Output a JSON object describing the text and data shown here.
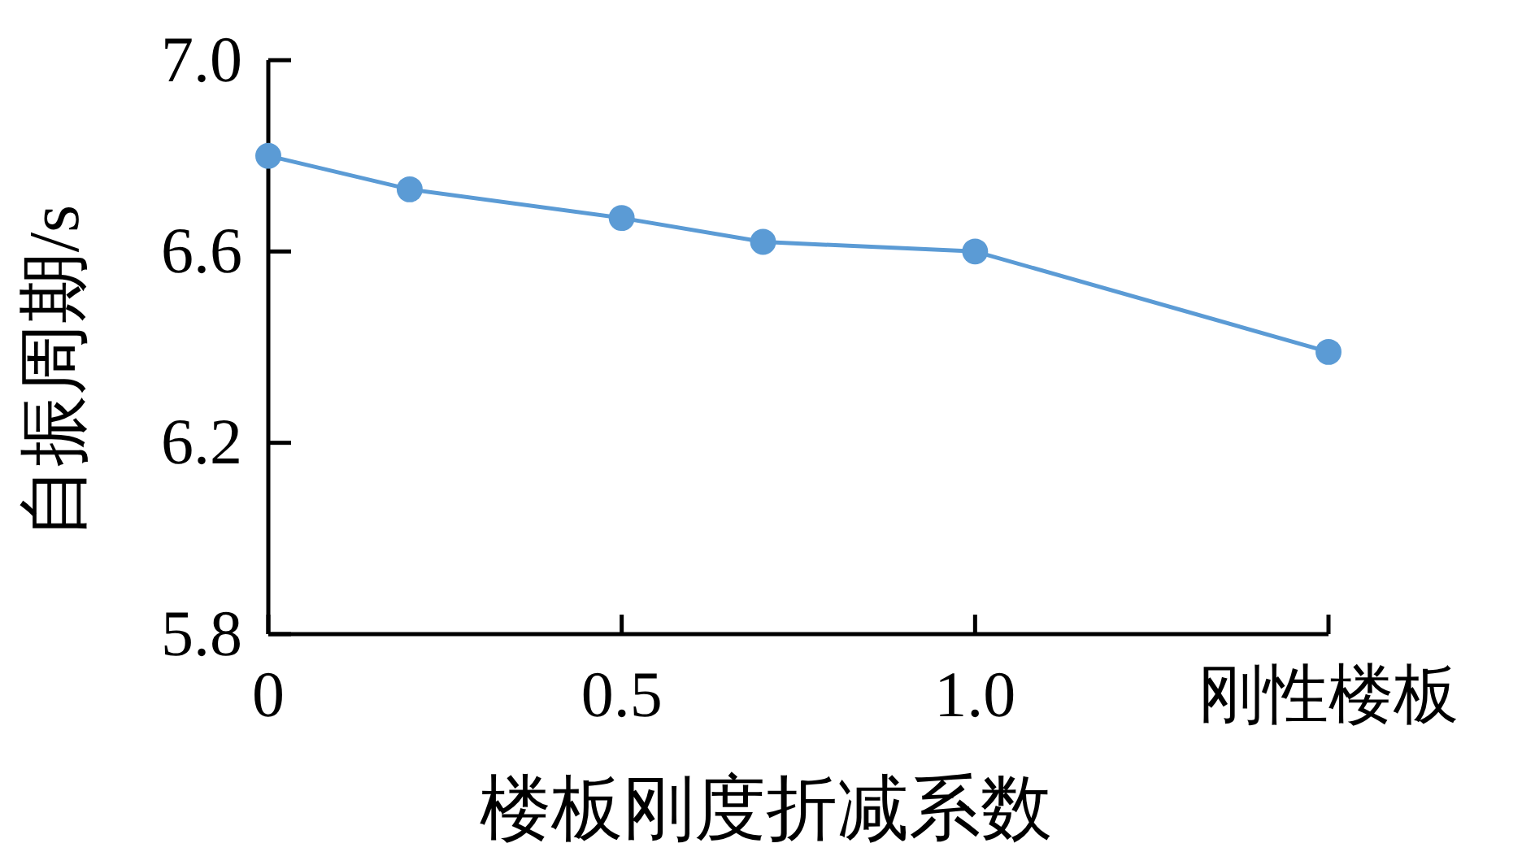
{
  "chart_data": {
    "type": "line",
    "xlabel": "楼板刚度折减系数",
    "ylabel": "自振周期/s",
    "x": [
      0,
      0.2,
      0.5,
      0.7,
      1.0,
      1.5
    ],
    "series": [
      {
        "color": "#5b9bd5",
        "values": [
          6.8,
          6.73,
          6.67,
          6.62,
          6.6,
          6.39
        ]
      }
    ],
    "xlim": [
      0,
      1.5
    ],
    "xticks": [
      0,
      0.5,
      {
        "value": 1.0,
        "label": "1.0"
      },
      {
        "value": 1.5,
        "label": "刚性楼板"
      }
    ],
    "ylim": [
      5.8,
      7.0
    ],
    "yticks": [
      5.8,
      6.2,
      6.6,
      {
        "value": 7.0,
        "label": "7.0"
      }
    ],
    "marker": "circle",
    "line_style": "solid"
  }
}
